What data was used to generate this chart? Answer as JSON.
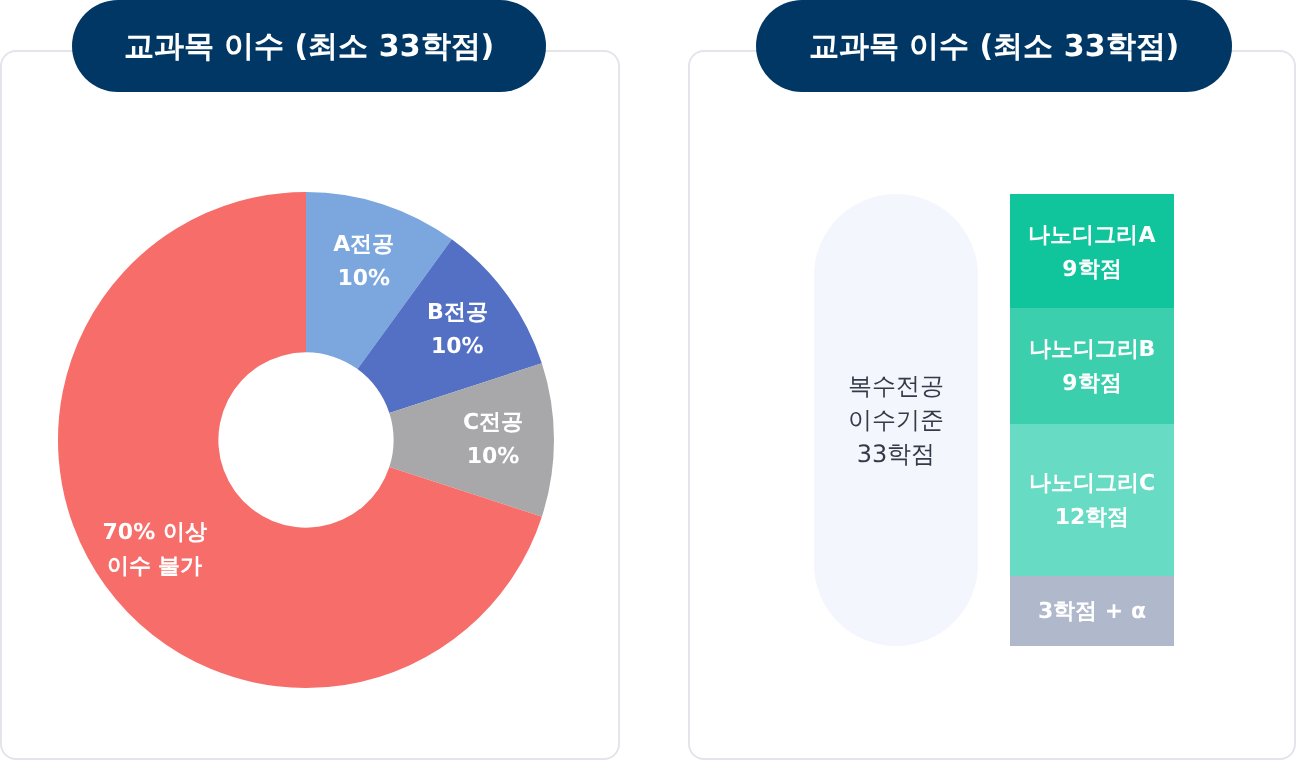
{
  "chart_data": [
    {
      "type": "donut",
      "title": "교과목 이수 (최소 33학점)",
      "categories": [
        "A전공",
        "B전공",
        "C전공",
        "70% 이상 이수 불가"
      ],
      "values": [
        10,
        10,
        10,
        70
      ],
      "value_labels": [
        "10%",
        "10%",
        "10%",
        null
      ],
      "colors": [
        "#7ba7de",
        "#5470c4",
        "#a8a8aa",
        "#f76d69"
      ]
    },
    {
      "type": "other",
      "title": "교과목 이수 (최소 33학점)",
      "categories": [
        null
      ],
      "annotations": [
        "복수전공 이수기준 33학점"
      ],
      "series": [
        {
          "name": "나노디그리A",
          "color": "#10c59c",
          "values": [
            9
          ],
          "value_labels": [
            "9학점"
          ]
        },
        {
          "name": "나노디그리B",
          "color": "#3bcfad",
          "values": [
            9
          ],
          "value_labels": [
            "9학점"
          ]
        },
        {
          "name": "나노디그리C",
          "color": "#67dbc3",
          "values": [
            12
          ],
          "value_labels": [
            "12학점"
          ]
        },
        {
          "color": "#b0b8cb",
          "values": [
            null
          ],
          "value_labels": [
            "3학점 + α"
          ]
        }
      ]
    }
  ]
}
